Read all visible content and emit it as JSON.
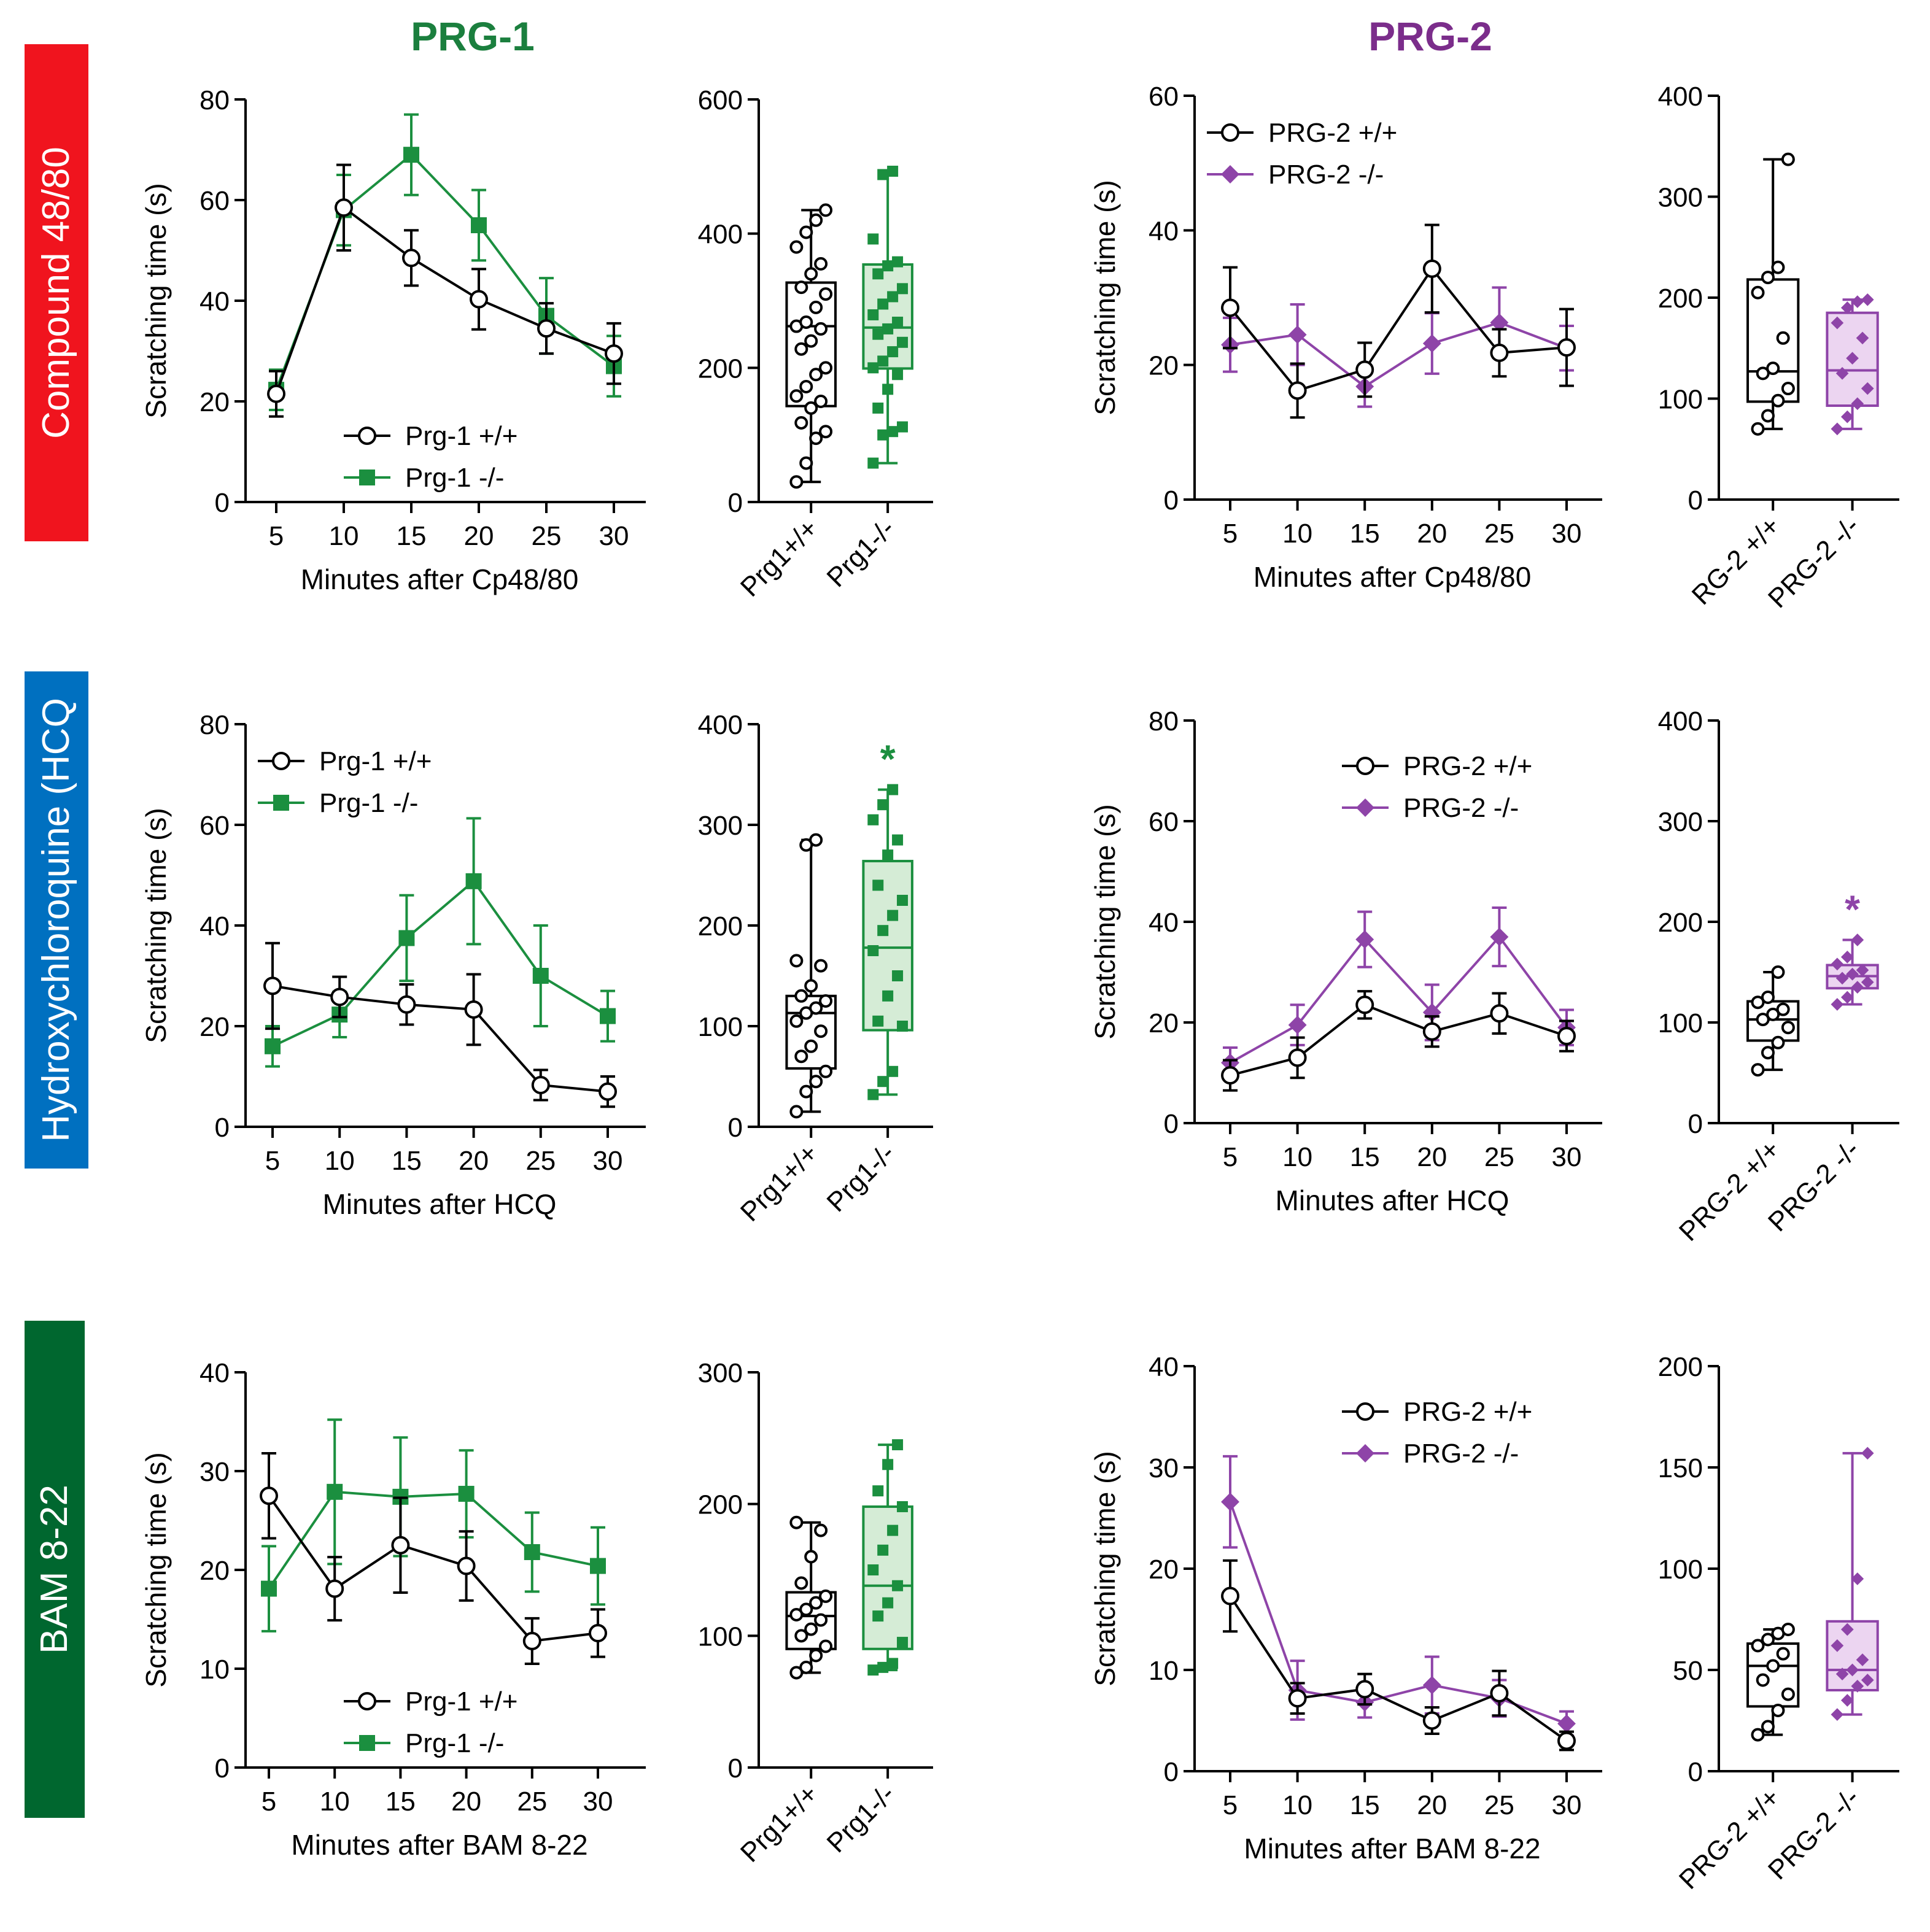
{
  "figure": {
    "column_titles": [
      {
        "text": "PRG-1",
        "color": "#1b7f3e"
      },
      {
        "text": "PRG-2",
        "color": "#7b2d8b"
      }
    ],
    "row_labels": [
      {
        "text": "Compound 48/80",
        "color": "#f0141e"
      },
      {
        "text": "Hydroxychloroquine (HCQ",
        "color": "#0070c0"
      },
      {
        "text": "BAM 8-22",
        "color": "#00672f"
      }
    ]
  },
  "chart_data": [
    {
      "type": "line",
      "id": "c48-prg1-line",
      "ylabel": "Scratching time (s)",
      "xlabel": "Minutes after Cp48/80",
      "x": [
        5,
        10,
        15,
        20,
        25,
        30
      ],
      "ylim": [
        0,
        80
      ],
      "yticks": [
        0,
        20,
        40,
        60,
        80
      ],
      "legend": "bottom-left",
      "series": [
        {
          "name": "Prg-1 +/+",
          "color": "#000000",
          "marker": "open-circle",
          "values": [
            21.5,
            58.5,
            48.5,
            40.3,
            34.5,
            29.5
          ],
          "errors": [
            4.5,
            8.5,
            5.5,
            6,
            5,
            6
          ]
        },
        {
          "name": "Prg-1 -/-",
          "color": "#1b8f3f",
          "marker": "square",
          "values": [
            22.3,
            58,
            69,
            55,
            37,
            27
          ],
          "errors": [
            4,
            7,
            8,
            7,
            7.5,
            6
          ]
        }
      ]
    },
    {
      "type": "box",
      "id": "c48-prg1-box",
      "ylim": [
        0,
        600
      ],
      "yticks": [
        0,
        200,
        400,
        600
      ],
      "categories": [
        "Prg1+/+",
        "Prg1-/-"
      ],
      "groups": [
        {
          "name": "Prg1+/+",
          "color": "#000000",
          "fill": "#ffffff",
          "marker": "open-circle",
          "min": 30,
          "q1": 143,
          "median": 262,
          "q3": 327,
          "max": 435,
          "points": [
            30,
            58,
            95,
            105,
            118,
            140,
            150,
            158,
            172,
            190,
            200,
            228,
            240,
            258,
            262,
            268,
            290,
            310,
            320,
            340,
            355,
            380,
            402,
            420,
            435
          ]
        },
        {
          "name": "Prg1-/-",
          "color": "#1b8f3f",
          "fill": "#d5ecd6",
          "marker": "square",
          "min": 58,
          "q1": 199,
          "median": 260,
          "q3": 354,
          "max": 493,
          "points": [
            58,
            100,
            105,
            112,
            140,
            168,
            190,
            200,
            210,
            224,
            238,
            250,
            258,
            268,
            279,
            295,
            306,
            318,
            340,
            352,
            358,
            392,
            488,
            493
          ]
        }
      ]
    },
    {
      "type": "line",
      "id": "c48-prg2-line",
      "ylabel": "Scratching time (s)",
      "xlabel": "Minutes after Cp48/80",
      "x": [
        5,
        10,
        15,
        20,
        25,
        30
      ],
      "ylim": [
        0,
        60
      ],
      "yticks": [
        0,
        20,
        40,
        60
      ],
      "legend": "top-left",
      "series": [
        {
          "name": "PRG-2 +/+",
          "color": "#000000",
          "marker": "open-circle",
          "values": [
            28.5,
            16.2,
            19.3,
            34.3,
            21.8,
            22.6
          ],
          "errors": [
            6,
            4,
            4,
            6.5,
            3.5,
            5.7
          ]
        },
        {
          "name": "PRG-2 -/-",
          "color": "#8e44a8",
          "marker": "diamond",
          "values": [
            23,
            24.5,
            16.8,
            23.2,
            26.3,
            22.5
          ],
          "errors": [
            4,
            4.5,
            3,
            4.5,
            5.2,
            3.3
          ]
        }
      ]
    },
    {
      "type": "box",
      "id": "c48-prg2-box",
      "ylim": [
        0,
        400
      ],
      "yticks": [
        0,
        100,
        200,
        300,
        400
      ],
      "categories": [
        "RG-2 +/+",
        "PRG-2 -/-"
      ],
      "groups": [
        {
          "name": "RG-2 +/+",
          "color": "#000000",
          "fill": "#ffffff",
          "marker": "open-circle",
          "min": 70,
          "q1": 97,
          "median": 127,
          "q3": 218,
          "max": 337,
          "points": [
            70,
            83,
            98,
            110,
            125,
            130,
            160,
            205,
            220,
            230,
            337
          ]
        },
        {
          "name": "PRG-2 -/-",
          "color": "#8e44a8",
          "fill": "#ecd5f1",
          "marker": "diamond",
          "min": 70,
          "q1": 93,
          "median": 128,
          "q3": 185,
          "max": 198,
          "points": [
            70,
            82,
            95,
            110,
            125,
            140,
            160,
            175,
            190,
            196,
            198
          ]
        }
      ]
    },
    {
      "type": "line",
      "id": "hcq-prg1-line",
      "ylabel": "Scratching time (s)",
      "xlabel": "Minutes after  HCQ",
      "x": [
        5,
        10,
        15,
        20,
        25,
        30
      ],
      "ylim": [
        0,
        80
      ],
      "yticks": [
        0,
        20,
        40,
        60,
        80
      ],
      "legend": "top-left",
      "series": [
        {
          "name": "Prg-1 +/+",
          "color": "#000000",
          "marker": "open-circle",
          "values": [
            28,
            25.8,
            24.3,
            23.3,
            8.3,
            7
          ],
          "errors": [
            8.5,
            4,
            4,
            7,
            3,
            3
          ]
        },
        {
          "name": "Prg-1 -/-",
          "color": "#1b8f3f",
          "marker": "square",
          "values": [
            16,
            22.3,
            37.5,
            48.8,
            30,
            22
          ],
          "errors": [
            4,
            4.5,
            8.5,
            12.5,
            10,
            5
          ]
        }
      ]
    },
    {
      "type": "box",
      "id": "hcq-prg1-box",
      "ylim": [
        0,
        400
      ],
      "yticks": [
        0,
        100,
        200,
        300,
        400
      ],
      "annotation": "*",
      "categories": [
        "Prg1+/+",
        "Prg1-/-"
      ],
      "groups": [
        {
          "name": "Prg1+/+",
          "color": "#000000",
          "fill": "#ffffff",
          "marker": "open-circle",
          "min": 15,
          "q1": 58,
          "median": 113,
          "q3": 130,
          "max": 285,
          "points": [
            15,
            35,
            45,
            55,
            70,
            80,
            95,
            105,
            113,
            118,
            125,
            130,
            140,
            160,
            165,
            280,
            285
          ]
        },
        {
          "name": "Prg1-/-",
          "color": "#1b8f3f",
          "fill": "#d5ecd6",
          "marker": "square",
          "min": 32,
          "q1": 96,
          "median": 178,
          "q3": 264,
          "max": 335,
          "points": [
            32,
            45,
            55,
            100,
            105,
            130,
            150,
            175,
            195,
            210,
            225,
            240,
            270,
            285,
            305,
            320,
            335
          ]
        }
      ]
    },
    {
      "type": "line",
      "id": "hcq-prg2-line",
      "ylabel": "Scratching time (s)",
      "xlabel": "Minutes after HCQ",
      "x": [
        5,
        10,
        15,
        20,
        25,
        30
      ],
      "ylim": [
        0,
        80
      ],
      "yticks": [
        0,
        20,
        40,
        60,
        80
      ],
      "legend": "top-right",
      "series": [
        {
          "name": "PRG-2 +/+",
          "color": "#000000",
          "marker": "open-circle",
          "values": [
            9.5,
            13,
            23.5,
            18.2,
            21.8,
            17.3
          ],
          "errors": [
            3,
            4,
            2.7,
            3,
            4,
            3
          ]
        },
        {
          "name": "PRG-2 -/-",
          "color": "#8e44a8",
          "marker": "diamond",
          "values": [
            12,
            19.5,
            36.5,
            22,
            37,
            19
          ],
          "errors": [
            3,
            4,
            5.5,
            5.5,
            5.8,
            3.5
          ]
        }
      ]
    },
    {
      "type": "box",
      "id": "hcq-prg2-box",
      "ylim": [
        0,
        400
      ],
      "yticks": [
        0,
        100,
        200,
        300,
        400
      ],
      "annotation": "*",
      "categories": [
        "PRG-2 +/+",
        "PRG-2 -/-"
      ],
      "groups": [
        {
          "name": "PRG-2 +/+",
          "color": "#000000",
          "fill": "#ffffff",
          "marker": "open-circle",
          "min": 53,
          "q1": 82,
          "median": 103,
          "q3": 121,
          "max": 150,
          "points": [
            53,
            70,
            80,
            95,
            103,
            108,
            113,
            120,
            125,
            150
          ]
        },
        {
          "name": "PRG-2 -/-",
          "color": "#8e44a8",
          "fill": "#ecd5f1",
          "marker": "diamond",
          "min": 118,
          "q1": 134,
          "median": 146,
          "q3": 157,
          "max": 182,
          "points": [
            118,
            125,
            135,
            140,
            144,
            148,
            152,
            158,
            165,
            182
          ]
        }
      ]
    },
    {
      "type": "line",
      "id": "bam-prg1-line",
      "ylabel": "Scratching time (s)",
      "xlabel": "Minutes after BAM 8-22",
      "x": [
        5,
        10,
        15,
        20,
        25,
        30
      ],
      "ylim": [
        0,
        40
      ],
      "yticks": [
        0,
        10,
        20,
        30,
        40
      ],
      "legend": "bottom-left",
      "series": [
        {
          "name": "Prg-1 +/+",
          "color": "#000000",
          "marker": "open-circle",
          "values": [
            27.5,
            18.1,
            22.5,
            20.4,
            12.8,
            13.6
          ],
          "errors": [
            4.3,
            3.2,
            4.8,
            3.5,
            2.3,
            2.4
          ]
        },
        {
          "name": "Prg-1 -/-",
          "color": "#1b8f3f",
          "marker": "square",
          "values": [
            18.1,
            27.9,
            27.4,
            27.7,
            21.8,
            20.4
          ],
          "errors": [
            4.3,
            7.3,
            6,
            4.4,
            4,
            3.9
          ]
        }
      ]
    },
    {
      "type": "box",
      "id": "bam-prg1-box",
      "ylim": [
        0,
        300
      ],
      "yticks": [
        0,
        100,
        200,
        300
      ],
      "categories": [
        "Prg1+/+",
        "Prg1-/-"
      ],
      "groups": [
        {
          "name": "Prg1+/+",
          "color": "#000000",
          "fill": "#ffffff",
          "marker": "open-circle",
          "min": 72,
          "q1": 90,
          "median": 115,
          "q3": 133,
          "max": 186,
          "points": [
            72,
            76,
            85,
            92,
            100,
            105,
            112,
            116,
            120,
            125,
            130,
            140,
            160,
            180,
            186
          ]
        },
        {
          "name": "Prg1-/-",
          "color": "#1b8f3f",
          "fill": "#d5ecd6",
          "marker": "square",
          "min": 74,
          "q1": 90,
          "median": 138,
          "q3": 198,
          "max": 245,
          "points": [
            74,
            76,
            79,
            95,
            115,
            125,
            138,
            150,
            165,
            180,
            198,
            210,
            230,
            245
          ]
        }
      ]
    },
    {
      "type": "line",
      "id": "bam-prg2-line",
      "ylabel": "Scratching time (s)",
      "xlabel": "Minutes after BAM 8-22",
      "x": [
        5,
        10,
        15,
        20,
        25,
        30
      ],
      "ylim": [
        0,
        40
      ],
      "yticks": [
        0,
        10,
        20,
        30,
        40
      ],
      "legend": "top-right",
      "series": [
        {
          "name": "PRG-2 +/+",
          "color": "#000000",
          "marker": "open-circle",
          "values": [
            17.3,
            7.2,
            8.1,
            5,
            7.7,
            3
          ],
          "errors": [
            3.5,
            1.5,
            1.5,
            1.3,
            2.2,
            0.9
          ]
        },
        {
          "name": "PRG-2 -/-",
          "color": "#8e44a8",
          "marker": "diamond",
          "values": [
            26.6,
            8,
            6.8,
            8.5,
            7.2,
            4.7
          ],
          "errors": [
            4.5,
            2.9,
            1.5,
            2.8,
            1.8,
            1.2
          ]
        }
      ]
    },
    {
      "type": "box",
      "id": "bam-prg2-box",
      "ylim": [
        0,
        200
      ],
      "yticks": [
        0,
        50,
        100,
        150,
        200
      ],
      "categories": [
        "PRG-2 +/+",
        "PRG-2 -/-"
      ],
      "groups": [
        {
          "name": "PRG-2 +/+",
          "color": "#000000",
          "fill": "#ffffff",
          "marker": "open-circle",
          "min": 18,
          "q1": 32,
          "median": 52,
          "q3": 63,
          "max": 70,
          "points": [
            18,
            22,
            30,
            38,
            45,
            52,
            58,
            62,
            65,
            68,
            70
          ]
        },
        {
          "name": "PRG-2 -/-",
          "color": "#8e44a8",
          "fill": "#ecd5f1",
          "marker": "diamond",
          "min": 28,
          "q1": 40,
          "median": 50,
          "q3": 74,
          "max": 157,
          "points": [
            28,
            35,
            42,
            45,
            48,
            50,
            55,
            62,
            70,
            95,
            157
          ]
        }
      ]
    }
  ]
}
